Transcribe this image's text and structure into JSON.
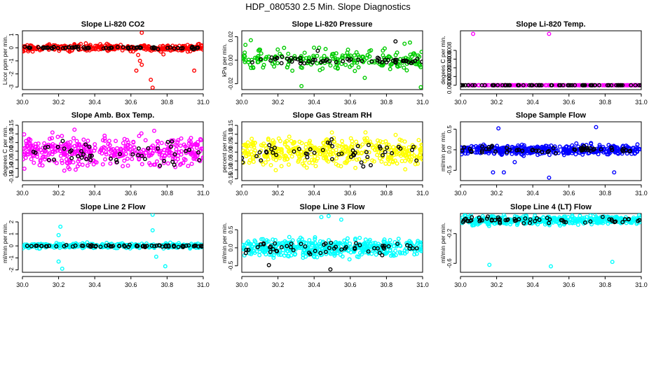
{
  "title": "HDP_080530  2.5 Min. Slope Diagnostics",
  "chart_data": [
    {
      "type": "scatter",
      "title": "Slope Li-820 CO2",
      "xlabel": "",
      "ylabel": "Licor ppm per min.",
      "xlim": [
        30.0,
        31.0
      ],
      "ylim": [
        -3.2,
        1.3
      ],
      "xticks": [
        "30.0",
        "30.2",
        "30.4",
        "30.6",
        "30.8",
        "31.0"
      ],
      "yticks": [
        "-3",
        "-2",
        "-1",
        "0",
        "1"
      ],
      "color": "#ff0000",
      "series": [
        {
          "name": "all",
          "color": "#ff0000",
          "spread": 0.18,
          "n": 300,
          "outliers": [
            [
              30.66,
              1.15
            ],
            [
              30.64,
              -0.55
            ],
            [
              30.65,
              -1.0
            ],
            [
              30.63,
              -1.75
            ],
            [
              30.66,
              -1.3
            ],
            [
              30.71,
              -2.45
            ],
            [
              30.72,
              -3.05
            ],
            [
              30.95,
              -1.75
            ],
            [
              30.78,
              -0.5
            ]
          ]
        },
        {
          "name": "highlight",
          "color": "#000000",
          "spread": 0.06,
          "n": 70,
          "outliers": []
        }
      ]
    },
    {
      "type": "scatter",
      "title": "Slope Li-820 Pressure",
      "xlabel": "",
      "ylabel": "kPa per min.",
      "xlim": [
        30.0,
        31.0
      ],
      "ylim": [
        -0.025,
        0.025
      ],
      "xticks": [
        "30.0",
        "30.2",
        "30.4",
        "30.6",
        "30.8",
        "31.0"
      ],
      "yticks": [
        "-0.02",
        "0.00",
        "0.02"
      ],
      "color": "#00cc00",
      "series": [
        {
          "name": "all",
          "color": "#00cc00",
          "spread": 0.006,
          "n": 220,
          "outliers": [
            [
              30.33,
              -0.022
            ],
            [
              30.99,
              -0.023
            ],
            [
              30.02,
              0.013
            ],
            [
              30.05,
              0.017
            ],
            [
              30.68,
              -0.015
            ],
            [
              30.9,
              0.014
            ],
            [
              30.93,
              0.015
            ]
          ]
        },
        {
          "name": "highlight",
          "color": "#000000",
          "spread": 0.002,
          "n": 60,
          "outliers": [
            [
              30.85,
              0.016
            ],
            [
              30.42,
              0.008
            ]
          ]
        }
      ]
    },
    {
      "type": "scatter",
      "title": "Slope Li-820 Temp.",
      "xlabel": "",
      "ylabel": "degees C per min.",
      "xlim": [
        30.0,
        31.0
      ],
      "ylim": [
        -0.0001,
        0.00125
      ],
      "xticks": [
        "30.0",
        "30.2",
        "30.4",
        "30.6",
        "30.8",
        "31.0"
      ],
      "yticks": [
        "0.0000",
        "0.0002",
        "0.0004",
        "0.0006",
        "0.0008"
      ],
      "color": "#ff00ff",
      "series": [
        {
          "name": "all",
          "color": "#ff00ff",
          "spread": 0.0,
          "n": 200,
          "outliers": [
            [
              30.07,
              0.00118
            ],
            [
              30.49,
              0.00118
            ]
          ]
        },
        {
          "name": "highlight",
          "color": "#000000",
          "spread": 0.0,
          "n": 70,
          "outliers": []
        }
      ]
    },
    {
      "type": "scatter",
      "title": "Slope Amb. Box Temp.",
      "xlabel": "",
      "ylabel": "degrees C per min.",
      "xlim": [
        30.0,
        31.0
      ],
      "ylim": [
        -0.17,
        0.17
      ],
      "xticks": [
        "30.0",
        "30.2",
        "30.4",
        "30.6",
        "30.8",
        "31.0"
      ],
      "yticks": [
        "-0.15",
        "-0.10",
        "-0.05",
        "0.00",
        "0.05",
        "0.10",
        "0.15"
      ],
      "color": "#ff00ff",
      "series": [
        {
          "name": "all",
          "color": "#ff00ff",
          "spread": 0.06,
          "n": 420,
          "outliers": []
        },
        {
          "name": "highlight",
          "color": "#000000",
          "spread": 0.05,
          "n": 45,
          "outliers": []
        }
      ]
    },
    {
      "type": "scatter",
      "title": "Slope Gas Stream RH",
      "xlabel": "",
      "ylabel": "percent per min.",
      "xlim": [
        30.0,
        31.0
      ],
      "ylim": [
        -0.16,
        0.17
      ],
      "xticks": [
        "30.0",
        "30.2",
        "30.4",
        "30.6",
        "30.8",
        "31.0"
      ],
      "yticks": [
        "-0.15",
        "-0.10",
        "-0.05",
        "0.00",
        "0.05",
        "0.10",
        "0.15"
      ],
      "color": "#ffff00",
      "series": [
        {
          "name": "all",
          "color": "#ffff00",
          "spread": 0.055,
          "n": 420,
          "outliers": []
        },
        {
          "name": "highlight",
          "color": "#000000",
          "spread": 0.045,
          "n": 50,
          "outliers": []
        }
      ]
    },
    {
      "type": "scatter",
      "title": "Slope Sample Flow",
      "xlabel": "",
      "ylabel": "ml/min per min.",
      "xlim": [
        30.0,
        31.0
      ],
      "ylim": [
        -0.75,
        0.68
      ],
      "xticks": [
        "30.0",
        "30.2",
        "30.4",
        "30.6",
        "30.8",
        "31.0"
      ],
      "yticks": [
        "-0.5",
        "0.0",
        "0.5"
      ],
      "color": "#0000ff",
      "series": [
        {
          "name": "all",
          "color": "#0000ff",
          "spread": 0.08,
          "n": 420,
          "outliers": [
            [
              30.21,
              0.52
            ],
            [
              30.75,
              0.55
            ],
            [
              30.18,
              -0.55
            ],
            [
              30.24,
              -0.55
            ],
            [
              30.49,
              -0.68
            ],
            [
              30.85,
              -0.55
            ],
            [
              30.3,
              -0.3
            ]
          ]
        },
        {
          "name": "highlight",
          "color": "#000000",
          "spread": 0.06,
          "n": 55,
          "outliers": []
        }
      ]
    },
    {
      "type": "scatter",
      "title": "Slope Line 2 Flow",
      "xlabel": "",
      "ylabel": "ml/min per min.",
      "xlim": [
        30.0,
        31.0
      ],
      "ylim": [
        -2.2,
        2.7
      ],
      "xticks": [
        "30.0",
        "30.2",
        "30.4",
        "30.6",
        "30.8",
        "31.0"
      ],
      "yticks": [
        "-2",
        "-1",
        "0",
        "1",
        "2"
      ],
      "color": "#00ffff",
      "series": [
        {
          "name": "all",
          "color": "#00ffff",
          "spread": 0.14,
          "n": 360,
          "outliers": [
            [
              30.21,
              1.6
            ],
            [
              30.2,
              -1.3
            ],
            [
              30.22,
              -1.9
            ],
            [
              30.72,
              2.6
            ],
            [
              30.72,
              1.3
            ],
            [
              30.74,
              -0.9
            ],
            [
              30.79,
              -1.7
            ],
            [
              30.2,
              0.9
            ]
          ]
        },
        {
          "name": "highlight",
          "color": "#000000",
          "spread": 0.06,
          "n": 70,
          "outliers": []
        }
      ]
    },
    {
      "type": "scatter",
      "title": "Slope Line 3 Flow",
      "xlabel": "",
      "ylabel": "ml/min per min.",
      "xlim": [
        30.0,
        31.0
      ],
      "ylim": [
        -0.68,
        0.95
      ],
      "xticks": [
        "30.0",
        "30.2",
        "30.4",
        "30.6",
        "30.8",
        "31.0"
      ],
      "yticks": [
        "-0.5",
        "0.0",
        "0.5"
      ],
      "color": "#00ffff",
      "series": [
        {
          "name": "all",
          "color": "#00ffff",
          "spread": 0.17,
          "n": 460,
          "outliers": [
            [
              30.48,
              0.88
            ],
            [
              30.55,
              0.78
            ],
            [
              30.44,
              0.85
            ]
          ]
        },
        {
          "name": "highlight",
          "color": "#000000",
          "spread": 0.15,
          "n": 55,
          "outliers": [
            [
              30.49,
              -0.6
            ],
            [
              30.15,
              -0.48
            ]
          ]
        }
      ]
    },
    {
      "type": "scatter",
      "title": "Slope Line 4 (LT) Flow",
      "xlabel": "",
      "ylabel": "ml/min per min.",
      "xlim": [
        30.0,
        31.0
      ],
      "ylim": [
        -0.72,
        0.07
      ],
      "xticks": [
        "30.0",
        "30.2",
        "30.4",
        "30.6",
        "30.8",
        "31.0"
      ],
      "yticks": [
        "-0.6",
        "-0.2"
      ],
      "color": "#00ffff",
      "series": [
        {
          "name": "all",
          "color": "#00ffff",
          "spread": 0.04,
          "n": 460,
          "outliers": [
            [
              30.16,
              -0.62
            ],
            [
              30.5,
              -0.64
            ],
            [
              30.84,
              -0.58
            ]
          ]
        },
        {
          "name": "highlight",
          "color": "#000000",
          "spread": 0.03,
          "n": 60,
          "outliers": []
        }
      ]
    }
  ]
}
